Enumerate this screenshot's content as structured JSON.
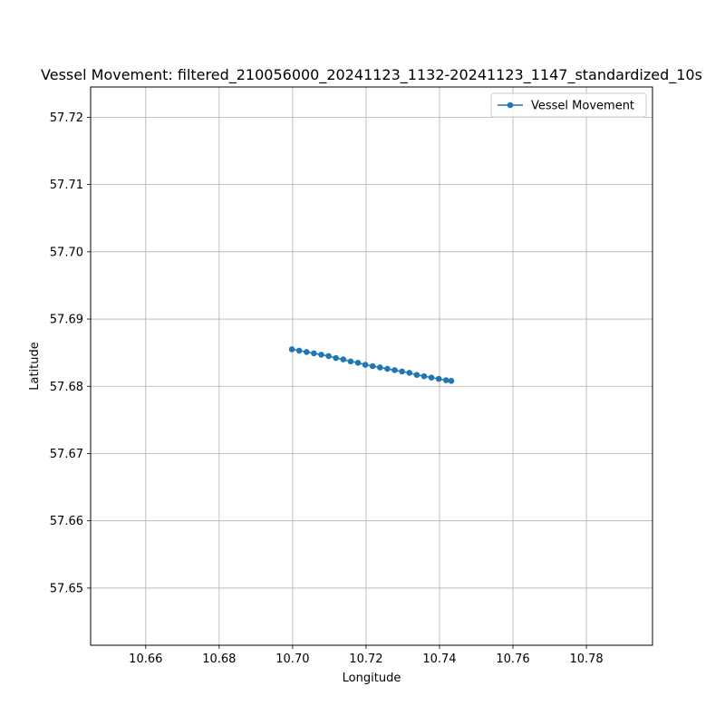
{
  "chart_data": {
    "type": "line",
    "title": "Vessel Movement: filtered_210056000_20241123_1132-20241123_1147_standardized_10s",
    "xlabel": "Longitude",
    "ylabel": "Latitude",
    "xlim": [
      10.645,
      10.798
    ],
    "ylim": [
      57.6415,
      57.7245
    ],
    "xticks": [
      10.66,
      10.68,
      10.7,
      10.72,
      10.74,
      10.76,
      10.78
    ],
    "xtick_labels": [
      "10.66",
      "10.68",
      "10.70",
      "10.72",
      "10.74",
      "10.76",
      "10.78"
    ],
    "yticks": [
      57.65,
      57.66,
      57.67,
      57.68,
      57.69,
      57.7,
      57.71,
      57.72
    ],
    "ytick_labels": [
      "57.65",
      "57.66",
      "57.67",
      "57.68",
      "57.69",
      "57.70",
      "57.71",
      "57.72"
    ],
    "grid": true,
    "legend_position": "top-right",
    "series": [
      {
        "name": "Vessel Movement",
        "color": "#1f77b4",
        "marker": "circle",
        "x": [
          10.6998,
          10.7018,
          10.7038,
          10.7058,
          10.7078,
          10.7098,
          10.7118,
          10.7138,
          10.7158,
          10.7178,
          10.7198,
          10.7218,
          10.7238,
          10.7258,
          10.7278,
          10.7298,
          10.7318,
          10.7338,
          10.7358,
          10.7378,
          10.7398,
          10.7418,
          10.7432
        ],
        "y": [
          57.6855,
          57.6853,
          57.6851,
          57.6849,
          57.6847,
          57.6845,
          57.6842,
          57.684,
          57.6837,
          57.6835,
          57.6832,
          57.683,
          57.6828,
          57.6826,
          57.6824,
          57.6822,
          57.682,
          57.6817,
          57.6815,
          57.6813,
          57.6811,
          57.6809,
          57.6808
        ]
      }
    ]
  }
}
